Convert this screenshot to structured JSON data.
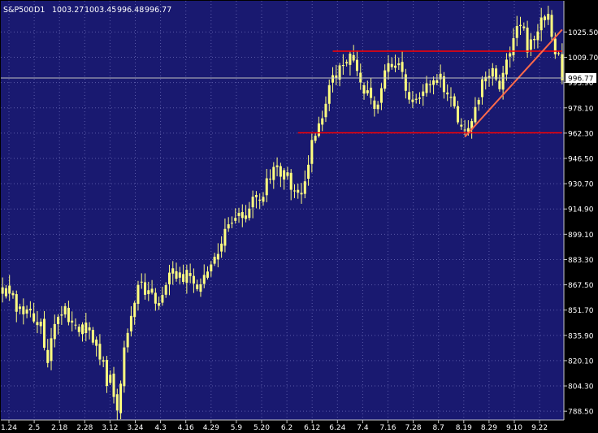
{
  "header": {
    "symbol": "S&P500",
    "timeframe": "D1",
    "open": "1003.27",
    "high": "1003.45",
    "low": "996.48",
    "close": "996.77"
  },
  "colors": {
    "background": "#000000",
    "plot_background": "#191970",
    "grid": "#5a5aa8",
    "axis": "#c8c8c8",
    "candle": "#ffff80",
    "horizontal_line": "#ff0000",
    "trend_line": "#ff6a4a",
    "current_price_line": "#c0c0c0"
  },
  "chart_data": {
    "type": "candlestick",
    "title": "",
    "xlabel": "",
    "ylabel": "",
    "ylim": [
      783,
      1045
    ],
    "y_ticks": [
      "1025.50",
      "1009.70",
      "993.90",
      "978.10",
      "962.30",
      "946.50",
      "930.70",
      "914.90",
      "899.10",
      "883.30",
      "867.50",
      "851.70",
      "835.90",
      "820.10",
      "804.30",
      "788.50"
    ],
    "x_ticks": [
      "1.24",
      "2.5",
      "2.18",
      "2.28",
      "3.12",
      "3.24",
      "4.3",
      "4.16",
      "4.29",
      "5.9",
      "5.20",
      "6.2",
      "6.12",
      "6.24",
      "7.4",
      "7.16",
      "7.28",
      "8.7",
      "8.19",
      "8.29",
      "9.10",
      "9.22"
    ],
    "current_price": "996.77",
    "close_path": [
      [
        0,
        865
      ],
      [
        5,
        852
      ],
      [
        11,
        843
      ],
      [
        13,
        822
      ],
      [
        15,
        844
      ],
      [
        18,
        851
      ],
      [
        21,
        838
      ],
      [
        23,
        845
      ],
      [
        28,
        824
      ],
      [
        30,
        808
      ],
      [
        31,
        807
      ],
      [
        33,
        790
      ],
      [
        35,
        825
      ],
      [
        38,
        860
      ],
      [
        40,
        870
      ],
      [
        42,
        860
      ],
      [
        45,
        858
      ],
      [
        48,
        875
      ],
      [
        51,
        872
      ],
      [
        54,
        875
      ],
      [
        56,
        866
      ],
      [
        60,
        882
      ],
      [
        64,
        898
      ],
      [
        68,
        912
      ],
      [
        71,
        917
      ],
      [
        75,
        925
      ],
      [
        78,
        940
      ],
      [
        81,
        935
      ],
      [
        84,
        928
      ],
      [
        86,
        920
      ],
      [
        88,
        945
      ],
      [
        90,
        963
      ],
      [
        92,
        975
      ],
      [
        95,
        995
      ],
      [
        97,
        1005
      ],
      [
        100,
        1012
      ],
      [
        101,
        1010
      ],
      [
        103,
        993
      ],
      [
        106,
        985
      ],
      [
        108,
        978
      ],
      [
        110,
        998
      ],
      [
        112,
        1005
      ],
      [
        114,
        1003
      ],
      [
        116,
        990
      ],
      [
        118,
        985
      ],
      [
        120,
        980
      ],
      [
        123,
        995
      ],
      [
        126,
        998
      ],
      [
        128,
        985
      ],
      [
        130,
        976
      ],
      [
        133,
        966
      ],
      [
        135,
        972
      ],
      [
        138,
        995
      ],
      [
        140,
        1000
      ],
      [
        142,
        998
      ],
      [
        143,
        992
      ],
      [
        146,
        1015
      ],
      [
        148,
        1025
      ],
      [
        150,
        1025
      ],
      [
        151,
        1015
      ],
      [
        153,
        1020
      ],
      [
        155,
        1038
      ],
      [
        157,
        1035
      ],
      [
        158,
        1022
      ],
      [
        159,
        1016
      ],
      [
        160,
        1010
      ],
      [
        161,
        997
      ]
    ],
    "horizontal_lines": [
      {
        "value": 1013.5,
        "x_start": 95,
        "x_end": 161
      },
      {
        "value": 962.5,
        "x_start": 85,
        "x_end": 161
      }
    ],
    "trend_line": {
      "x1": 133,
      "y1": 960,
      "x2": 161,
      "y2": 1027
    }
  }
}
